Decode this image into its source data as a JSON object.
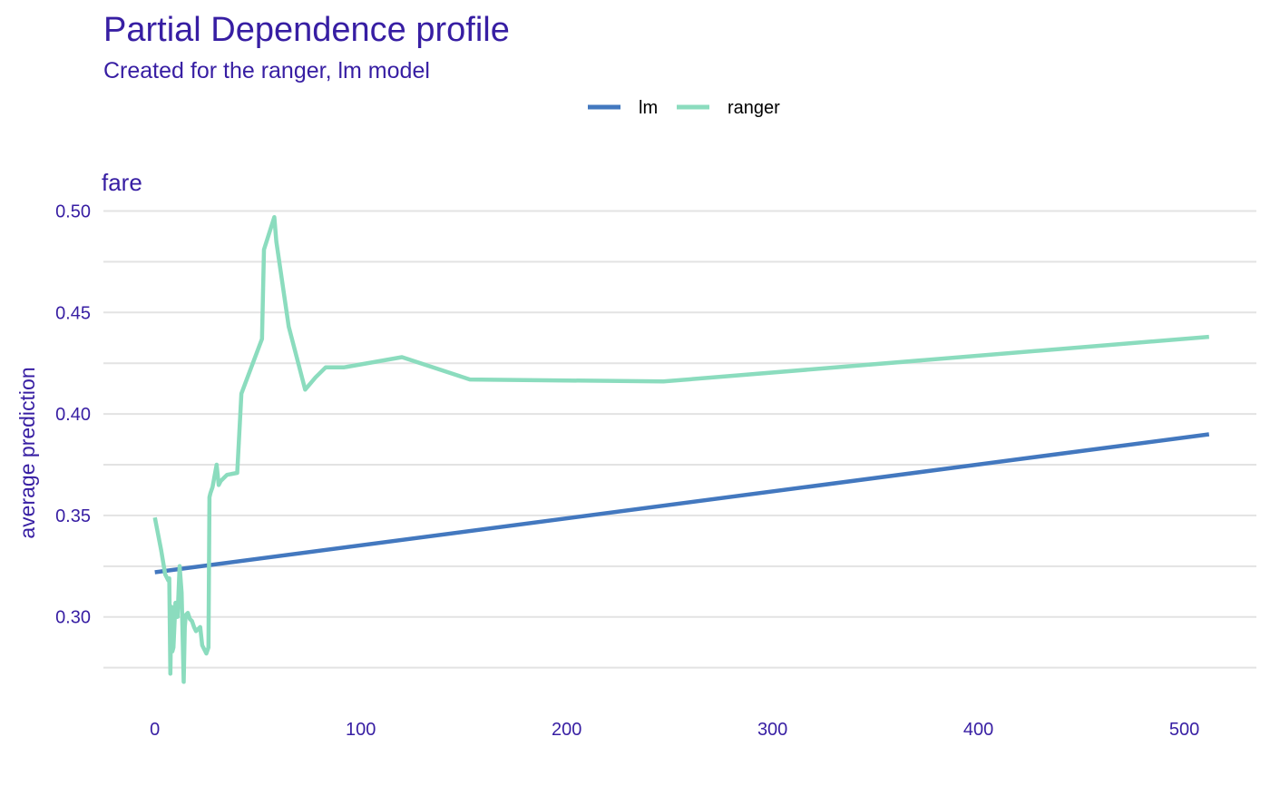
{
  "chart_data": {
    "type": "line",
    "title": "Partial Dependence profile",
    "subtitle": "Created for the ranger, lm model",
    "facet_label": "fare",
    "xlabel": "",
    "ylabel": "average prediction",
    "xlim": [
      -25,
      535
    ],
    "ylim": [
      0.265,
      0.502
    ],
    "x_ticks": [
      0,
      100,
      200,
      300,
      400,
      500
    ],
    "y_ticks": [
      0.3,
      0.35,
      0.4,
      0.45,
      0.5
    ],
    "y_tick_labels": [
      "0.30",
      "0.35",
      "0.40",
      "0.45",
      "0.50"
    ],
    "grid": true,
    "legend_position": "top",
    "series": [
      {
        "name": "lm",
        "color": "#4378bf",
        "x": [
          0,
          512
        ],
        "y": [
          0.322,
          0.39
        ]
      },
      {
        "name": "ranger",
        "color": "#8bdcbe",
        "x": [
          0,
          3,
          5,
          6.5,
          7,
          7.5,
          8,
          8.5,
          9,
          10,
          11,
          12,
          13,
          14,
          14.5,
          15,
          16,
          17,
          18,
          19,
          20,
          22,
          23,
          24,
          25,
          26,
          26.5,
          27,
          28,
          30,
          31,
          32,
          35,
          40,
          42,
          52,
          53,
          58,
          59,
          65,
          73,
          78,
          83,
          92,
          120,
          153,
          247,
          512
        ],
        "y": [
          0.349,
          0.333,
          0.321,
          0.318,
          0.319,
          0.272,
          0.305,
          0.283,
          0.285,
          0.307,
          0.3,
          0.325,
          0.312,
          0.268,
          0.295,
          0.301,
          0.302,
          0.299,
          0.298,
          0.295,
          0.293,
          0.295,
          0.286,
          0.284,
          0.282,
          0.285,
          0.359,
          0.361,
          0.364,
          0.375,
          0.365,
          0.367,
          0.37,
          0.371,
          0.41,
          0.437,
          0.481,
          0.497,
          0.485,
          0.443,
          0.412,
          0.418,
          0.423,
          0.423,
          0.428,
          0.417,
          0.416,
          0.438
        ]
      }
    ]
  }
}
